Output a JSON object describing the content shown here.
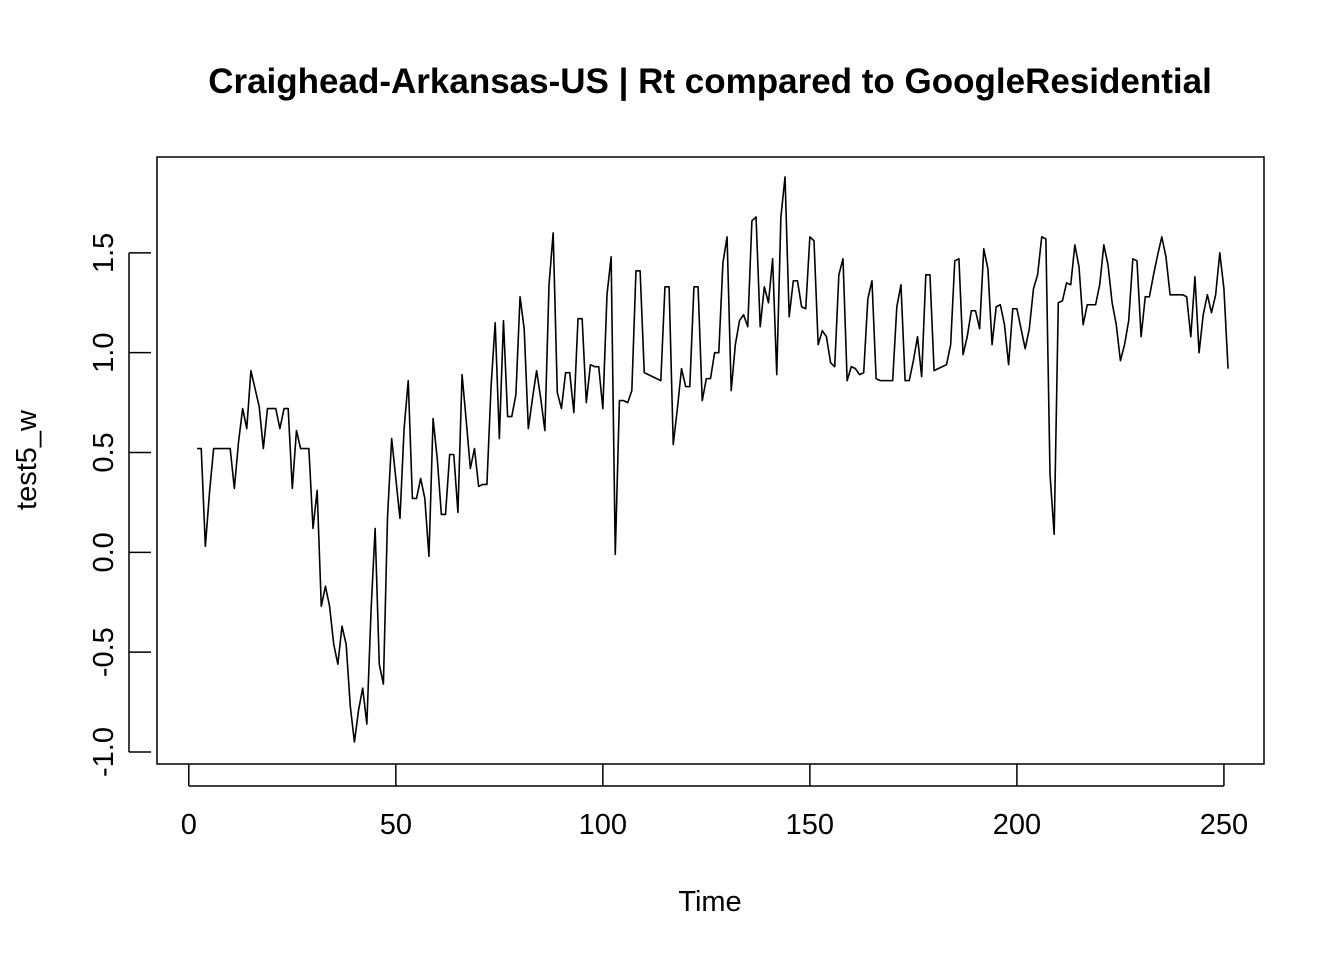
{
  "chart_data": {
    "type": "line",
    "title": "Craighead-Arkansas-US | Rt compared to GoogleResidential",
    "xlabel": "Time",
    "ylabel": "test5_w",
    "xlim": [
      -7.68,
      259.68
    ],
    "ylim": [
      -1.06,
      1.98
    ],
    "x_ticks": [
      0,
      50,
      100,
      150,
      200,
      250
    ],
    "y_ticks": [
      -1.0,
      -0.5,
      0.0,
      0.5,
      1.0,
      1.5
    ],
    "x_tick_labels": [
      "0",
      "50",
      "100",
      "150",
      "200",
      "250"
    ],
    "y_tick_labels": [
      "-1.0",
      "-0.5",
      "0.0",
      "0.5",
      "1.0",
      "1.5"
    ],
    "grid": false,
    "legend": "none",
    "line_color": "#000000",
    "series": [
      {
        "x_start": 2,
        "values": [
          0.52,
          0.52,
          0.03,
          0.3,
          0.52,
          0.52,
          0.52,
          0.52,
          0.52,
          0.32,
          0.55,
          0.72,
          0.62,
          0.91,
          0.82,
          0.73,
          0.52,
          0.72,
          0.72,
          0.72,
          0.62,
          0.72,
          0.72,
          0.32,
          0.61,
          0.52,
          0.52,
          0.52,
          0.12,
          0.31,
          -0.27,
          -0.17,
          -0.27,
          -0.46,
          -0.56,
          -0.37,
          -0.46,
          -0.77,
          -0.95,
          -0.79,
          -0.68,
          -0.86,
          -0.3,
          0.12,
          -0.56,
          -0.66,
          0.18,
          0.57,
          0.37,
          0.17,
          0.62,
          0.86,
          0.27,
          0.27,
          0.37,
          0.27,
          -0.02,
          0.67,
          0.47,
          0.19,
          0.19,
          0.49,
          0.49,
          0.2,
          0.89,
          0.66,
          0.42,
          0.52,
          0.33,
          0.34,
          0.34,
          0.83,
          1.15,
          0.57,
          1.16,
          0.68,
          0.68,
          0.79,
          1.28,
          1.12,
          0.62,
          0.77,
          0.91,
          0.77,
          0.61,
          1.34,
          1.6,
          0.8,
          0.72,
          0.9,
          0.9,
          0.7,
          1.17,
          1.17,
          0.75,
          0.94,
          0.93,
          0.93,
          0.72,
          1.29,
          1.48,
          -0.01,
          0.76,
          0.76,
          0.75,
          0.81,
          1.41,
          1.41,
          0.9,
          0.89,
          0.88,
          0.87,
          0.86,
          1.33,
          1.33,
          0.54,
          0.72,
          0.92,
          0.83,
          0.83,
          1.33,
          1.33,
          0.76,
          0.87,
          0.87,
          1.0,
          1.0,
          1.45,
          1.58,
          0.81,
          1.04,
          1.16,
          1.19,
          1.13,
          1.66,
          1.68,
          1.13,
          1.33,
          1.25,
          1.47,
          0.89,
          1.68,
          1.88,
          1.18,
          1.36,
          1.36,
          1.23,
          1.22,
          1.58,
          1.56,
          1.04,
          1.11,
          1.08,
          0.95,
          0.93,
          1.39,
          1.47,
          0.86,
          0.93,
          0.92,
          0.89,
          0.9,
          1.27,
          1.36,
          0.87,
          0.86,
          0.86,
          0.86,
          0.86,
          1.23,
          1.34,
          0.86,
          0.86,
          0.96,
          1.08,
          0.88,
          1.39,
          1.39,
          0.91,
          0.92,
          0.93,
          0.94,
          1.04,
          1.46,
          1.47,
          0.99,
          1.08,
          1.21,
          1.21,
          1.12,
          1.52,
          1.42,
          1.04,
          1.23,
          1.24,
          1.14,
          0.94,
          1.22,
          1.22,
          1.12,
          1.02,
          1.12,
          1.32,
          1.39,
          1.58,
          1.57,
          0.39,
          0.09,
          1.25,
          1.26,
          1.35,
          1.34,
          1.54,
          1.43,
          1.14,
          1.24,
          1.24,
          1.24,
          1.34,
          1.54,
          1.44,
          1.25,
          1.14,
          0.96,
          1.04,
          1.16,
          1.47,
          1.46,
          1.08,
          1.28,
          1.28,
          1.39,
          1.49,
          1.58,
          1.48,
          1.29,
          1.29,
          1.29,
          1.29,
          1.28,
          1.08,
          1.38,
          1.0,
          1.19,
          1.29,
          1.2,
          1.29,
          1.5,
          1.32,
          0.92
        ]
      }
    ]
  }
}
